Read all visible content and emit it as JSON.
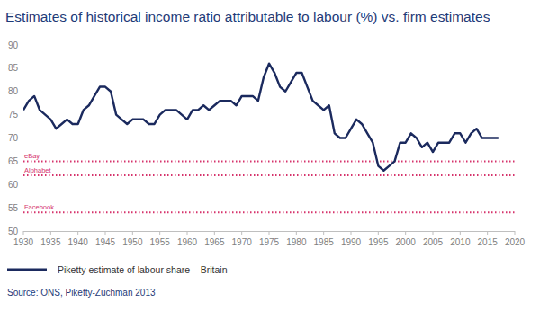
{
  "chart_data": {
    "type": "line",
    "title": "Estimates of historical income ratio attributable to labour (%) vs. firm estimates",
    "source": "Source: ONS, Piketty-Zuchman 2013",
    "x": [
      1930,
      1931,
      1932,
      1933,
      1934,
      1935,
      1936,
      1937,
      1938,
      1939,
      1940,
      1941,
      1942,
      1943,
      1944,
      1945,
      1946,
      1947,
      1948,
      1949,
      1950,
      1951,
      1952,
      1953,
      1954,
      1955,
      1956,
      1957,
      1958,
      1959,
      1960,
      1961,
      1962,
      1963,
      1964,
      1965,
      1966,
      1967,
      1968,
      1969,
      1970,
      1971,
      1972,
      1973,
      1974,
      1975,
      1976,
      1977,
      1978,
      1979,
      1980,
      1981,
      1982,
      1983,
      1984,
      1985,
      1986,
      1987,
      1988,
      1989,
      1990,
      1991,
      1992,
      1993,
      1994,
      1995,
      1996,
      1997,
      1998,
      1999,
      2000,
      2001,
      2002,
      2003,
      2004,
      2005,
      2006,
      2007,
      2008,
      2009,
      2010,
      2011,
      2012,
      2013,
      2014,
      2015,
      2016,
      2017
    ],
    "series": [
      {
        "name": "Piketty estimate of labour share – Britain",
        "color": "#1b2a5e",
        "line_style": "solid",
        "values": [
          76,
          78,
          79,
          76,
          75,
          74,
          72,
          73,
          74,
          73,
          73,
          76,
          77,
          79,
          81,
          81,
          80,
          75,
          74,
          73,
          74,
          74,
          74,
          73,
          73,
          75,
          76,
          76,
          76,
          75,
          74,
          76,
          76,
          77,
          76,
          77,
          78,
          78,
          78,
          77,
          79,
          79,
          79,
          78,
          83,
          86,
          84,
          81,
          80,
          82,
          84,
          84,
          81,
          78,
          77,
          76,
          77,
          71,
          70,
          70,
          72,
          74,
          73,
          71,
          69,
          64,
          63,
          64,
          65,
          69,
          69,
          71,
          70,
          68,
          69,
          67,
          69,
          69,
          69,
          71,
          71,
          69,
          71,
          72,
          70,
          70,
          70,
          70
        ]
      }
    ],
    "annotations": [
      {
        "text": "eBay",
        "value": 65,
        "color": "#d6336c",
        "line_style": "dotted"
      },
      {
        "text": "Alphabet",
        "value": 62,
        "color": "#d6336c",
        "line_style": "dotted"
      },
      {
        "text": "Facebook",
        "value": 54,
        "color": "#d6336c",
        "line_style": "dotted"
      }
    ],
    "xlim": [
      1930,
      2020
    ],
    "xticks": [
      1930,
      1935,
      1940,
      1945,
      1950,
      1955,
      1960,
      1965,
      1970,
      1975,
      1980,
      1985,
      1990,
      1995,
      2000,
      2005,
      2010,
      2015,
      2020
    ],
    "ylim": [
      50,
      90
    ],
    "yticks": [
      50,
      55,
      60,
      65,
      70,
      75,
      80,
      85,
      90
    ],
    "grid": false,
    "legend": "bottom"
  }
}
